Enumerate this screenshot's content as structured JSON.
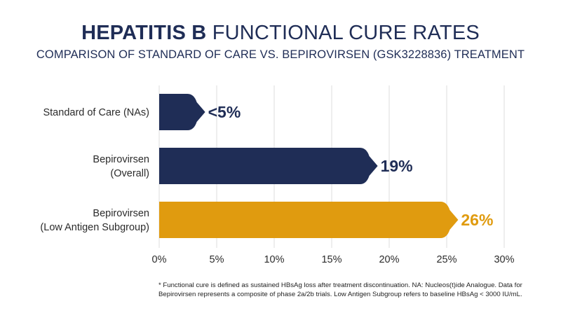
{
  "header": {
    "title_bold": "HEPATITIS B",
    "title_rest": "FUNCTIONAL CURE RATES",
    "subtitle": "COMPARISON OF STANDARD OF CARE VS. BEPIROVIRSEN (GSK3228836) TREATMENT"
  },
  "colors": {
    "navy": "#1f2d56",
    "gold": "#e09b0f",
    "grid": "#dcdcdc",
    "text": "#1f2d4e"
  },
  "chart_data": {
    "type": "bar",
    "orientation": "horizontal",
    "title": "HEPATITIS B FUNCTIONAL CURE RATES",
    "subtitle": "COMPARISON OF STANDARD OF CARE VS. BEPIROVIRSEN (GSK3228836) TREATMENT",
    "categories": [
      [
        "Standard of Care (NAs)"
      ],
      [
        "Bepirovirsen",
        "(Overall)"
      ],
      [
        "Bepirovirsen",
        "(Low Antigen Subgroup)"
      ]
    ],
    "values": [
      4,
      19,
      26
    ],
    "value_labels": [
      "<5%",
      "19%",
      "26%"
    ],
    "bar_colors": [
      "#1f2d56",
      "#1f2d56",
      "#e09b0f"
    ],
    "label_colors": [
      "#1f2d56",
      "#1f2d56",
      "#e09b0f"
    ],
    "xlim": [
      0,
      30
    ],
    "xticks": [
      0,
      5,
      10,
      15,
      20,
      25,
      30
    ],
    "xtick_labels": [
      "0%",
      "5%",
      "10%",
      "15%",
      "20%",
      "25%",
      "30%"
    ],
    "grid": true,
    "xlabel": "",
    "ylabel": ""
  },
  "footnote": "* Functional cure is defined as sustained HBsAg loss after treatment discontinuation. NA: Nucleos(t)ide Analogue. Data for Bepirovirsen represents a composite of phase 2a/2b trials. Low Antigen Subgroup refers to baseline HBsAg < 3000 IU/mL."
}
